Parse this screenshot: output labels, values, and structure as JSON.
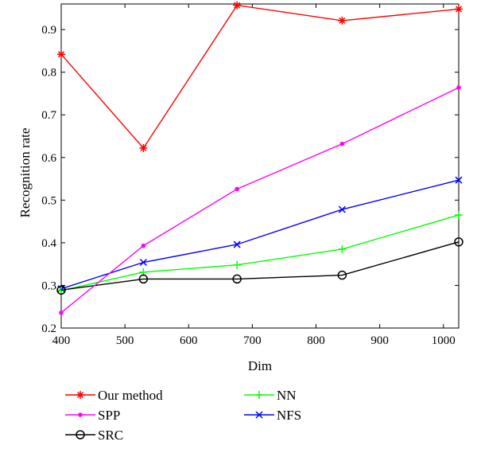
{
  "chart_data": {
    "type": "line",
    "xlabel": "Dim",
    "ylabel": "Recognition rate",
    "xlim": [
      400,
      1024
    ],
    "ylim": [
      0.2,
      0.96
    ],
    "xticks": [
      400,
      500,
      600,
      700,
      800,
      900,
      1000
    ],
    "yticks": [
      0.2,
      0.3,
      0.4,
      0.5,
      0.6,
      0.7,
      0.8,
      0.9
    ],
    "grid": false,
    "legend_position": "bottom",
    "x": [
      400,
      529,
      676,
      841,
      1024
    ],
    "series": [
      {
        "name": "Our method",
        "values": [
          0.842,
          0.622,
          0.957,
          0.921,
          0.948
        ],
        "color": "#ff0000",
        "marker": "asterisk"
      },
      {
        "name": "SPP",
        "values": [
          0.236,
          0.393,
          0.526,
          0.632,
          0.764
        ],
        "color": "#ff00ff",
        "marker": "dot"
      },
      {
        "name": "SRC",
        "values": [
          0.289,
          0.315,
          0.315,
          0.324,
          0.402
        ],
        "color": "#000000",
        "marker": "circle"
      },
      {
        "name": "NN",
        "values": [
          0.288,
          0.331,
          0.348,
          0.385,
          0.465
        ],
        "color": "#00ff00",
        "marker": "plus"
      },
      {
        "name": "NFS",
        "values": [
          0.292,
          0.354,
          0.396,
          0.478,
          0.547
        ],
        "color": "#0000ff",
        "marker": "x"
      }
    ]
  }
}
